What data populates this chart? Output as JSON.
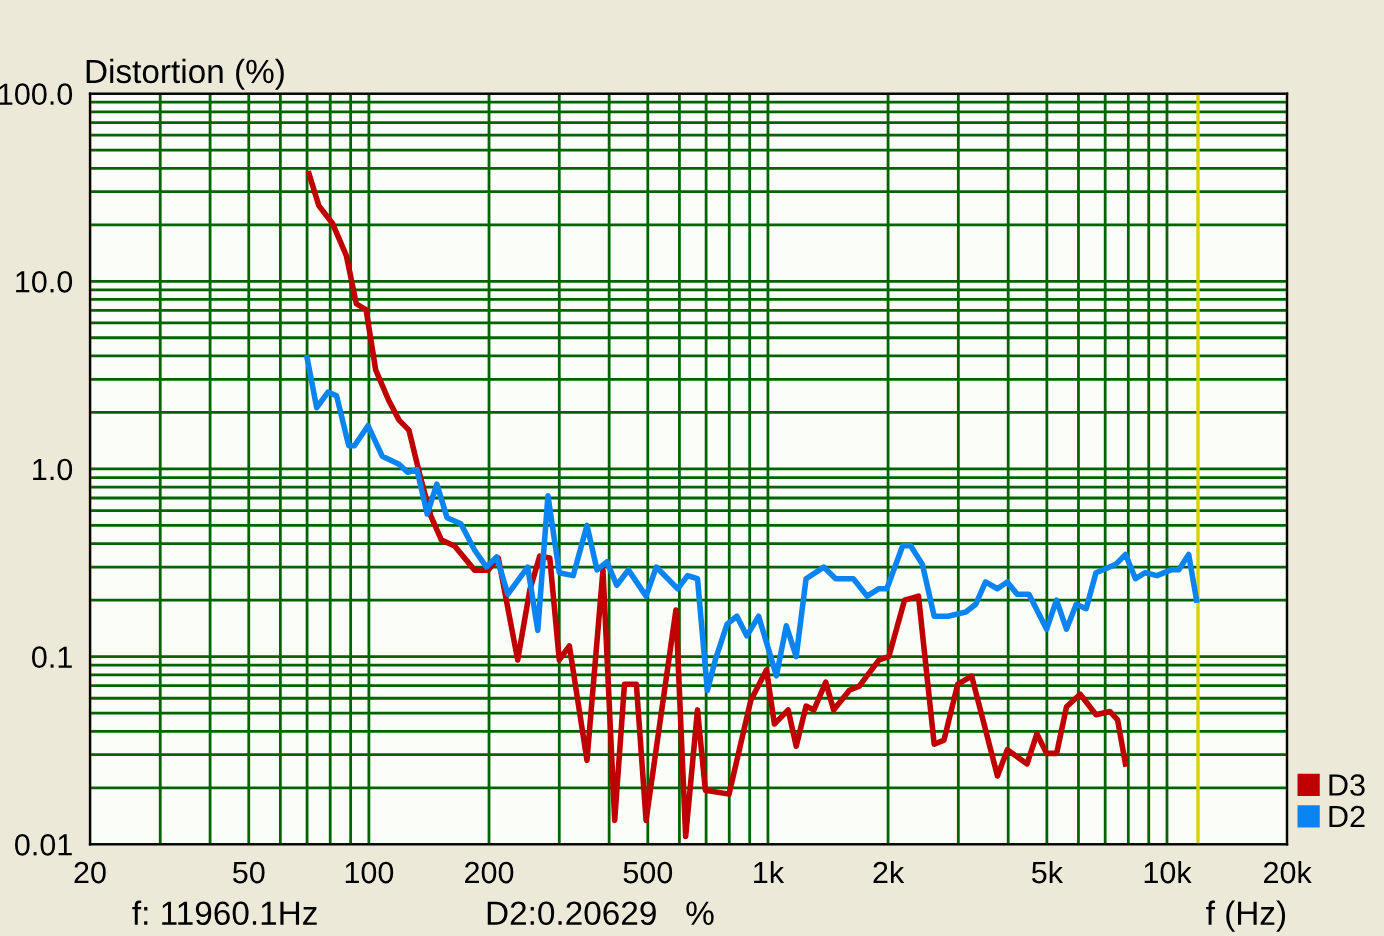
{
  "chart_data": {
    "type": "line",
    "ylabel": "Distortion (%)",
    "xlabel": "f (Hz)",
    "annotations": [
      "f: 11960.1Hz",
      "D2:0.20629   %"
    ],
    "log": "xy",
    "grid": true,
    "legend": "bottom right",
    "line_style": "solid",
    "xlim": [
      20,
      20000
    ],
    "xticks": [
      20,
      50,
      100,
      200,
      500,
      {
        "value": 1000,
        "label": "1k"
      },
      {
        "value": 2000,
        "label": "2k"
      },
      {
        "value": 5000,
        "label": "5k"
      },
      {
        "value": 10000,
        "label": "10k"
      },
      {
        "value": 20000,
        "label": "20k"
      }
    ],
    "ylim": [
      0.01,
      100
    ],
    "yticks": [
      {
        "value": 0.01,
        "label": "0.01"
      },
      {
        "value": 0.1,
        "label": "0.1"
      },
      {
        "value": 1,
        "label": "1.0"
      },
      {
        "value": 10,
        "label": "10.0"
      },
      {
        "value": 100,
        "label": "100.0"
      }
    ],
    "ref_lines": [
      {
        "axis": "x",
        "value": 11960.1,
        "color": "#d8d000"
      }
    ],
    "series": [
      {
        "name": "D3",
        "color": "#c00000",
        "x": [
          70.8,
          74.9,
          81.1,
          87.8,
          93,
          98.4,
          104,
          112,
          119,
          126,
          134,
          143,
          152,
          164,
          184,
          199,
          211,
          236,
          253,
          268,
          284,
          300,
          318,
          352,
          386,
          413,
          437,
          468,
          495,
          588,
          622,
          666,
          697,
          799,
          906,
          992,
          1038,
          1124,
          1177,
          1246,
          1304,
          1396,
          1461,
          1600,
          1694,
          1898,
          2009,
          2200,
          2384,
          2610,
          2761,
          2990,
          3240,
          3760,
          3980,
          4460,
          4720,
          4990,
          5290,
          5600,
          6060,
          6640,
          7190,
          7520,
          7870
        ],
        "values": [
          37.4,
          25.3,
          20.3,
          13.7,
          7.59,
          7.05,
          3.37,
          2.33,
          1.82,
          1.61,
          0.94,
          0.56,
          0.418,
          0.388,
          0.289,
          0.289,
          0.335,
          0.096,
          0.226,
          0.343,
          0.335,
          0.096,
          0.114,
          0.028,
          0.289,
          0.0134,
          0.0713,
          0.0713,
          0.0134,
          0.177,
          0.011,
          0.052,
          0.0194,
          0.0185,
          0.0586,
          0.085,
          0.0437,
          0.052,
          0.0333,
          0.0545,
          0.052,
          0.0731,
          0.052,
          0.0662,
          0.0696,
          0.096,
          0.1,
          0.2,
          0.21,
          0.0341,
          0.0359,
          0.0713,
          0.0787,
          0.0231,
          0.0319,
          0.0268,
          0.0388,
          0.0305,
          0.0305,
          0.054,
          0.063,
          0.049,
          0.051,
          0.046,
          0.0268
        ]
      },
      {
        "name": "D2",
        "color": "#0a84f0",
        "x": [
          70,
          74,
          79,
          83,
          89,
          92,
          99.5,
          108,
          119,
          125,
          132,
          140,
          148,
          157,
          170,
          184,
          197,
          209,
          223,
          250,
          265,
          281,
          300,
          325,
          352,
          373,
          395,
          418,
          447,
          495,
          525,
          594,
          629,
          666,
          705,
          738,
          790,
          836,
          885,
          948,
          1050,
          1112,
          1177,
          1246,
          1380,
          1478,
          1637,
          1772,
          1898,
          1986,
          2176,
          2278,
          2438,
          2610,
          2826,
          3132,
          3316,
          3510,
          3758,
          3978,
          4212,
          4508,
          4994,
          5286,
          5598,
          5924,
          6272,
          6638,
          7438,
          7872,
          8338,
          8824,
          9442,
          10228,
          10708,
          11334,
          11860
        ],
        "values": [
          3.91,
          2.12,
          2.57,
          2.45,
          1.33,
          1.33,
          1.7,
          1.17,
          1.06,
          0.96,
          0.99,
          0.575,
          0.83,
          0.55,
          0.51,
          0.37,
          0.3,
          0.34,
          0.215,
          0.3,
          0.138,
          0.72,
          0.28,
          0.27,
          0.5,
          0.29,
          0.32,
          0.24,
          0.29,
          0.21,
          0.3,
          0.23,
          0.27,
          0.26,
          0.066,
          0.096,
          0.149,
          0.164,
          0.129,
          0.164,
          0.079,
          0.146,
          0.1,
          0.26,
          0.3,
          0.26,
          0.26,
          0.21,
          0.23,
          0.23,
          0.39,
          0.39,
          0.31,
          0.164,
          0.164,
          0.173,
          0.19,
          0.25,
          0.23,
          0.25,
          0.215,
          0.215,
          0.14,
          0.2,
          0.14,
          0.19,
          0.18,
          0.28,
          0.31,
          0.35,
          0.26,
          0.28,
          0.27,
          0.29,
          0.29,
          0.35,
          0.2
        ]
      }
    ]
  }
}
